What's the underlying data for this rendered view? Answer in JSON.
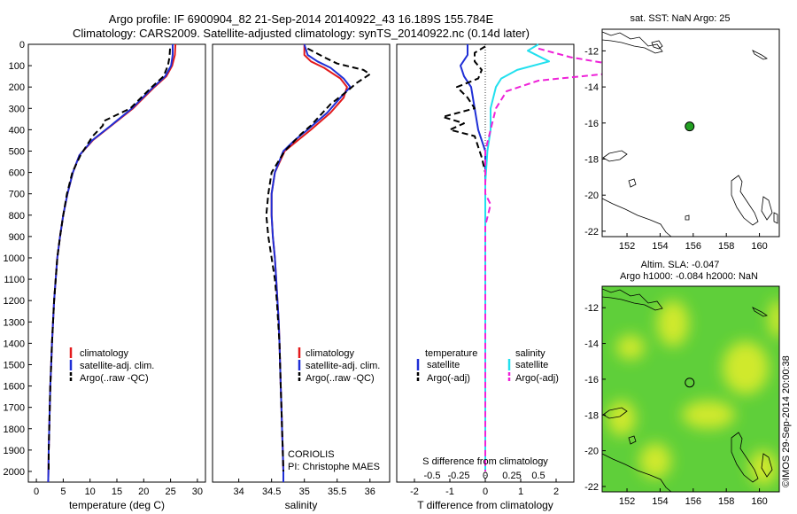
{
  "header": {
    "title_line1": "Argo profile: IF 6900904_82 21-Sep-2014 20140922_43 16.189S 155.784E",
    "title_line2": "Climatology: CARS2009. Satellite-adjusted climatology: synTS_20140922.nc (0.14d later)"
  },
  "colors": {
    "climatology": "#e31a1c",
    "satellite": "#1f2fd6",
    "argo": "#000000",
    "sal_satellite": "#22e0ee",
    "sal_argo": "#ee22d8",
    "map_green": "#5fcf3a",
    "map_yellow": "#e4ee2c",
    "argo_marker": "#22a022"
  },
  "chart_data": [
    {
      "type": "line",
      "name": "temperature-panel",
      "xlabel": "temperature (deg C)",
      "ylabel": "",
      "xlim": [
        -1.5,
        31.5
      ],
      "ylim": [
        2050,
        0
      ],
      "xticks": [
        0,
        5,
        10,
        15,
        20,
        25,
        30
      ],
      "yticks": [
        0,
        100,
        200,
        300,
        400,
        500,
        600,
        700,
        800,
        900,
        1000,
        1100,
        1200,
        1300,
        1400,
        1500,
        1600,
        1700,
        1800,
        1900,
        2000
      ],
      "legend": [
        "climatology",
        "satellite-adj. clim.",
        "Argo(..raw -QC)"
      ],
      "series": [
        {
          "name": "climatology",
          "color_key": "climatology",
          "dash": false,
          "points": [
            [
              25.9,
              0
            ],
            [
              25.8,
              50
            ],
            [
              25.3,
              100
            ],
            [
              24.2,
              150
            ],
            [
              22.0,
              200
            ],
            [
              18.0,
              300
            ],
            [
              14.0,
              380
            ],
            [
              10.5,
              450
            ],
            [
              8.0,
              520
            ],
            [
              6.8,
              600
            ],
            [
              5.8,
              700
            ],
            [
              5.0,
              800
            ],
            [
              4.4,
              900
            ],
            [
              3.9,
              1000
            ],
            [
              3.6,
              1100
            ],
            [
              3.3,
              1200
            ],
            [
              3.1,
              1300
            ],
            [
              2.9,
              1400
            ],
            [
              2.75,
              1500
            ],
            [
              2.6,
              1600
            ],
            [
              2.5,
              1700
            ],
            [
              2.4,
              1800
            ],
            [
              2.3,
              1900
            ],
            [
              2.25,
              2000
            ],
            [
              2.2,
              2050
            ]
          ]
        },
        {
          "name": "satellite-adj. clim.",
          "color_key": "satellite",
          "dash": false,
          "points": [
            [
              25.4,
              0
            ],
            [
              25.4,
              50
            ],
            [
              25.1,
              100
            ],
            [
              24.0,
              150
            ],
            [
              21.8,
              200
            ],
            [
              17.8,
              300
            ],
            [
              13.9,
              380
            ],
            [
              10.4,
              450
            ],
            [
              8.0,
              520
            ],
            [
              6.8,
              600
            ],
            [
              5.8,
              700
            ],
            [
              5.0,
              800
            ],
            [
              4.4,
              900
            ],
            [
              3.9,
              1000
            ],
            [
              3.6,
              1100
            ],
            [
              3.3,
              1200
            ],
            [
              3.1,
              1300
            ],
            [
              2.9,
              1400
            ],
            [
              2.75,
              1500
            ],
            [
              2.6,
              1600
            ],
            [
              2.5,
              1700
            ],
            [
              2.4,
              1800
            ],
            [
              2.3,
              1900
            ],
            [
              2.25,
              2000
            ],
            [
              2.2,
              2050
            ]
          ]
        },
        {
          "name": "Argo(..raw -QC)",
          "color_key": "argo",
          "dash": true,
          "points": [
            [
              24.9,
              20
            ],
            [
              24.8,
              60
            ],
            [
              24.5,
              100
            ],
            [
              23.7,
              150
            ],
            [
              21.5,
              200
            ],
            [
              17.5,
              300
            ],
            [
              12.5,
              360
            ],
            [
              12.4,
              380
            ],
            [
              10.5,
              430
            ],
            [
              8.2,
              520
            ],
            [
              6.7,
              600
            ],
            [
              5.7,
              700
            ],
            [
              5.0,
              800
            ],
            [
              4.4,
              900
            ],
            [
              3.9,
              1000
            ],
            [
              3.6,
              1100
            ],
            [
              3.3,
              1200
            ],
            [
              3.1,
              1300
            ],
            [
              2.9,
              1400
            ],
            [
              2.75,
              1500
            ],
            [
              2.6,
              1600
            ],
            [
              2.5,
              1700
            ],
            [
              2.4,
              1800
            ],
            [
              2.3,
              1900
            ],
            [
              2.3,
              2000
            ]
          ]
        }
      ]
    },
    {
      "type": "line",
      "name": "salinity-panel",
      "xlabel": "salinity",
      "xlim": [
        33.6,
        36.3
      ],
      "ylim": [
        2050,
        0
      ],
      "xticks": [
        34,
        34.5,
        35,
        35.5,
        36
      ],
      "legend": [
        "climatology",
        "satellite-adj. clim.",
        "Argo(..raw -QC)"
      ],
      "annotation": [
        "CORIOLIS",
        "PI: Christophe MAES"
      ],
      "series": [
        {
          "name": "climatology",
          "color_key": "climatology",
          "dash": false,
          "points": [
            [
              35.0,
              0
            ],
            [
              35.0,
              50
            ],
            [
              35.1,
              80
            ],
            [
              35.3,
              110
            ],
            [
              35.55,
              160
            ],
            [
              35.65,
              200
            ],
            [
              35.6,
              250
            ],
            [
              35.4,
              320
            ],
            [
              35.1,
              400
            ],
            [
              34.9,
              450
            ],
            [
              34.7,
              500
            ],
            [
              34.55,
              600
            ],
            [
              34.5,
              700
            ],
            [
              34.5,
              800
            ],
            [
              34.52,
              900
            ],
            [
              34.55,
              1000
            ],
            [
              34.57,
              1100
            ],
            [
              34.59,
              1200
            ],
            [
              34.61,
              1300
            ],
            [
              34.62,
              1400
            ],
            [
              34.63,
              1500
            ],
            [
              34.64,
              1600
            ],
            [
              34.65,
              1700
            ],
            [
              34.66,
              1800
            ],
            [
              34.67,
              1900
            ],
            [
              34.68,
              2000
            ],
            [
              34.68,
              2050
            ]
          ]
        },
        {
          "name": "satellite-adj. clim.",
          "color_key": "satellite",
          "dash": false,
          "points": [
            [
              35.0,
              0
            ],
            [
              35.05,
              50
            ],
            [
              35.2,
              80
            ],
            [
              35.4,
              110
            ],
            [
              35.6,
              160
            ],
            [
              35.7,
              200
            ],
            [
              35.55,
              250
            ],
            [
              35.35,
              320
            ],
            [
              35.05,
              400
            ],
            [
              34.85,
              450
            ],
            [
              34.68,
              500
            ],
            [
              34.55,
              600
            ],
            [
              34.5,
              700
            ],
            [
              34.5,
              800
            ],
            [
              34.52,
              900
            ],
            [
              34.55,
              1000
            ],
            [
              34.57,
              1100
            ],
            [
              34.59,
              1200
            ],
            [
              34.61,
              1300
            ],
            [
              34.62,
              1400
            ],
            [
              34.63,
              1500
            ],
            [
              34.64,
              1600
            ],
            [
              34.65,
              1700
            ],
            [
              34.66,
              1800
            ],
            [
              34.67,
              1900
            ],
            [
              34.68,
              2000
            ],
            [
              34.68,
              2050
            ]
          ]
        },
        {
          "name": "Argo(..raw -QC)",
          "color_key": "argo",
          "dash": true,
          "points": [
            [
              35.05,
              20
            ],
            [
              35.3,
              60
            ],
            [
              35.5,
              90
            ],
            [
              35.9,
              120
            ],
            [
              36.0,
              140
            ],
            [
              35.8,
              180
            ],
            [
              35.65,
              220
            ],
            [
              35.4,
              280
            ],
            [
              35.1,
              380
            ],
            [
              34.95,
              420
            ],
            [
              34.7,
              500
            ],
            [
              34.5,
              600
            ],
            [
              34.45,
              700
            ],
            [
              34.42,
              800
            ],
            [
              34.45,
              900
            ],
            [
              34.5,
              1000
            ],
            [
              34.55,
              1100
            ],
            [
              34.58,
              1200
            ],
            [
              34.6,
              1300
            ],
            [
              34.62,
              1400
            ],
            [
              34.63,
              1500
            ],
            [
              34.64,
              1600
            ],
            [
              34.65,
              1700
            ],
            [
              34.66,
              1800
            ],
            [
              34.67,
              1900
            ],
            [
              34.68,
              2000
            ]
          ]
        }
      ]
    },
    {
      "type": "line",
      "name": "difference-panel",
      "xlabel_top": "S difference from climatology",
      "xlabel": "T difference from climatology",
      "xlim": [
        -2.5,
        2.5
      ],
      "ylim": [
        2050,
        0
      ],
      "xticks": [
        -2,
        -1,
        0,
        1,
        2
      ],
      "xticks_s": [
        -0.5,
        -0.25,
        0,
        0.25,
        0.5
      ],
      "legend_temperature": {
        "heading": "temperature",
        "items": [
          "satellite",
          "Argo(-adj)"
        ]
      },
      "legend_salinity": {
        "heading": "salinity",
        "items": [
          "satellite",
          "Argo(-adj)"
        ]
      },
      "series": [
        {
          "name": "satellite",
          "group": "temperature",
          "color_key": "satellite",
          "dash": false,
          "points": [
            [
              -0.5,
              0
            ],
            [
              -0.5,
              50
            ],
            [
              -0.7,
              100
            ],
            [
              -0.6,
              150
            ],
            [
              -0.4,
              200
            ],
            [
              -0.3,
              300
            ],
            [
              -0.2,
              400
            ],
            [
              -0.1,
              450
            ],
            [
              0,
              500
            ],
            [
              0,
              2000
            ]
          ]
        },
        {
          "name": "Argo(-adj)",
          "group": "temperature",
          "color_key": "argo",
          "dash": true,
          "points": [
            [
              0,
              10
            ],
            [
              -0.3,
              40
            ],
            [
              -0.3,
              80
            ],
            [
              -0.1,
              120
            ],
            [
              -0.2,
              160
            ],
            [
              -0.8,
              200
            ],
            [
              -0.5,
              250
            ],
            [
              -0.3,
              300
            ],
            [
              -1.2,
              340
            ],
            [
              -0.6,
              370
            ],
            [
              -1.0,
              400
            ],
            [
              -0.3,
              430
            ],
            [
              -0.2,
              480
            ],
            [
              -0.1,
              530
            ],
            [
              0,
              600
            ],
            [
              0,
              2000
            ]
          ]
        },
        {
          "name": "satellite",
          "group": "salinity",
          "color_key": "sal_satellite",
          "dash": false,
          "points": [
            [
              0.5,
              0
            ],
            [
              0.4,
              30
            ],
            [
              0.6,
              80
            ],
            [
              0.3,
              120
            ],
            [
              0.15,
              160
            ],
            [
              0.1,
              200
            ],
            [
              0.05,
              300
            ],
            [
              0.05,
              400
            ],
            [
              0.02,
              500
            ],
            [
              0,
              650
            ],
            [
              0,
              2000
            ]
          ]
        },
        {
          "name": "Argo(-adj)",
          "group": "salinity",
          "color_key": "sal_argo",
          "dash": true,
          "points": [
            [
              0.5,
              20
            ],
            [
              0.8,
              60
            ],
            [
              1.5,
              120
            ],
            [
              0.5,
              170
            ],
            [
              0.2,
              220
            ],
            [
              0.1,
              300
            ],
            [
              0.05,
              400
            ],
            [
              0,
              500
            ],
            [
              0,
              700
            ],
            [
              0.05,
              750
            ],
            [
              0,
              850
            ],
            [
              0,
              2000
            ]
          ]
        }
      ]
    }
  ],
  "maps": {
    "sst": {
      "title": "sat. SST: NaN Argo: 25",
      "xticks": [
        152,
        154,
        156,
        158,
        160
      ],
      "yticks": [
        -12,
        -14,
        -16,
        -18,
        -20,
        -22
      ],
      "xlim": [
        150.5,
        161.2
      ],
      "ylim": [
        -22.3,
        -10.8
      ],
      "argo_lon": 155.784,
      "argo_lat": -16.189
    },
    "sla": {
      "title_line1": "Altim. SLA: -0.047",
      "title_line2": "Argo h1000: -0.084 h2000: NaN",
      "xticks": [
        152,
        154,
        156,
        158,
        160
      ],
      "yticks": [
        -12,
        -14,
        -16,
        -18,
        -20,
        -22
      ],
      "xlim": [
        150.5,
        161.2
      ],
      "ylim": [
        -22.3,
        -10.8
      ],
      "argo_lon": 155.784,
      "argo_lat": -16.189,
      "stamp": "©IMOS 29-Sep-2014 20:00:38"
    }
  }
}
